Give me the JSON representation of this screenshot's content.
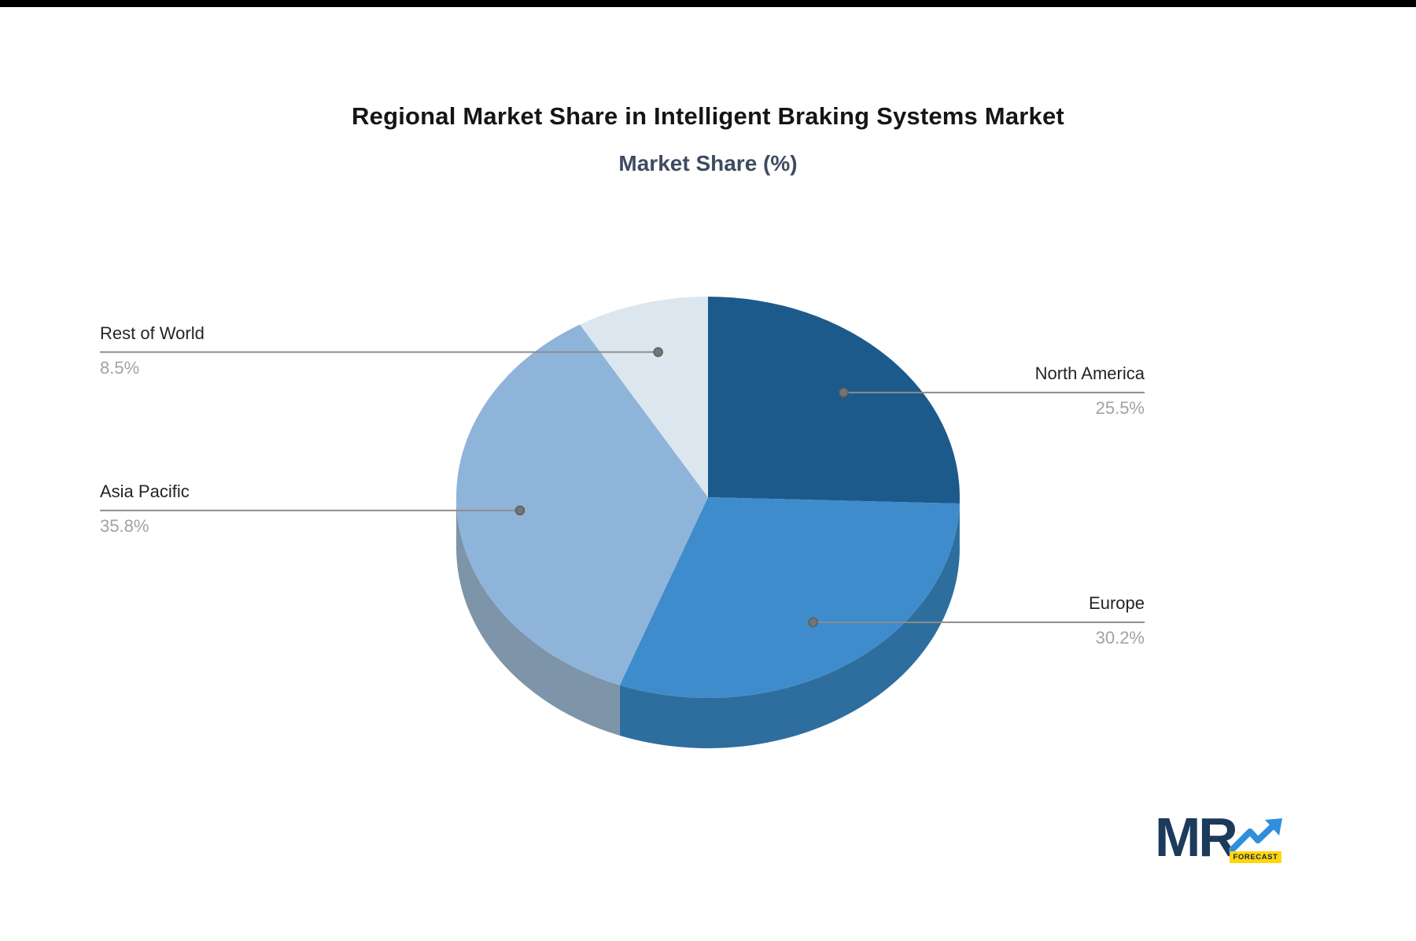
{
  "page": {
    "title": "Regional Market Share in Intelligent Braking Systems Market",
    "subtitle": "Market Share (%)"
  },
  "chart_data": {
    "type": "pie",
    "style": "3d-pie",
    "title": "Regional Market Share in Intelligent Braking Systems Market",
    "subtitle": "Market Share (%)",
    "unit": "%",
    "start_angle_deg": 0,
    "clockwise": true,
    "legend_position": "none (leader-line callout labels)",
    "regions": [
      {
        "name": "North America",
        "value": 25.5,
        "label": "25.5%",
        "color": "#1d5a8c",
        "side_color": "#164a75",
        "callout_side": "right"
      },
      {
        "name": "Europe",
        "value": 30.2,
        "label": "30.2%",
        "color": "#3e8ccb",
        "side_color": "#2d6e9e",
        "callout_side": "right"
      },
      {
        "name": "Asia Pacific",
        "value": 35.8,
        "label": "35.8%",
        "color": "#8fb4da",
        "side_color": "#7d94a9",
        "callout_side": "left"
      },
      {
        "name": "Rest of World",
        "value": 8.5,
        "label": "8.5%",
        "color": "#dce6ef",
        "side_color": "#c9d5e0",
        "callout_side": "left"
      }
    ],
    "colors": {
      "leader_line": "#8c8c8c",
      "leader_dot": "#757575",
      "label_text": "#242424",
      "pct_text": "#a2a2a2",
      "title_text": "#151515",
      "subtitle_text": "#3e4c61"
    }
  },
  "logo": {
    "mr": "MR",
    "forecast": "FORECAST",
    "navy": "#1c3a5c",
    "arrow_blue": "#2f8fdd",
    "yellow": "#ffd60f"
  }
}
